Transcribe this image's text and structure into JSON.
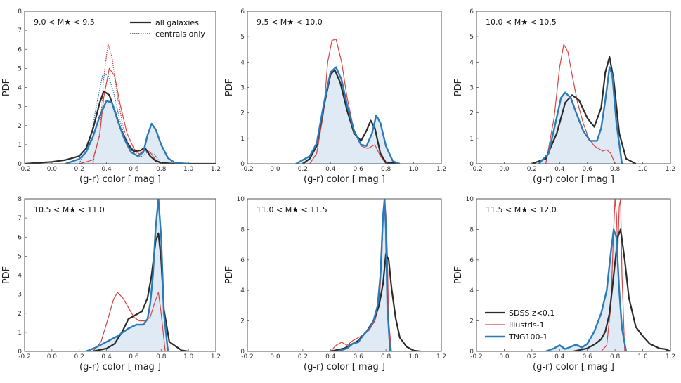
{
  "figure": {
    "ylabel": "PDF",
    "xlabel": "(g-r) color [ mag ]",
    "xticks": [
      "-0.2",
      "0.0",
      "0.2",
      "0.4",
      "0.6",
      "0.8",
      "1.0",
      "1.2"
    ],
    "legend_line_style": {
      "title": "",
      "entries": [
        "all galaxies",
        "centrals only"
      ]
    },
    "legend_sims": {
      "entries": [
        "SDSS z<0.1",
        "Illustris-1",
        "TNG100-1"
      ]
    }
  },
  "colors": {
    "sdss": "#2b2b2b",
    "illustris": "#d94545",
    "tng": "#2b7bb9",
    "fill": "#dfeaf5"
  },
  "chart_data": [
    {
      "type": "line",
      "title": "9.0 < M★ < 9.5",
      "xlabel": "(g-r) color [ mag ]",
      "ylabel": "PDF",
      "xlim": [
        -0.2,
        1.2
      ],
      "ylim": [
        0,
        8
      ],
      "yticks": [
        "0",
        "1",
        "2",
        "3",
        "4",
        "5",
        "6",
        "7",
        "8"
      ],
      "series": [
        {
          "name": "SDSS z<0.1",
          "x": [
            -0.2,
            -0.1,
            0.0,
            0.1,
            0.2,
            0.25,
            0.3,
            0.35,
            0.38,
            0.42,
            0.46,
            0.5,
            0.55,
            0.6,
            0.65,
            0.68,
            0.72,
            0.76,
            0.8,
            0.9,
            1.0,
            1.2
          ],
          "values": [
            0,
            0.05,
            0.1,
            0.2,
            0.4,
            0.8,
            1.8,
            3.2,
            3.8,
            3.6,
            2.8,
            1.9,
            1.1,
            0.65,
            0.7,
            0.85,
            0.4,
            0.15,
            0.05,
            0,
            0,
            0
          ]
        },
        {
          "name": "Illustris-1",
          "x": [
            0.2,
            0.3,
            0.35,
            0.38,
            0.42,
            0.46,
            0.5,
            0.55,
            0.6,
            0.64,
            0.68,
            0.72,
            0.76,
            0.8,
            0.9
          ],
          "values": [
            0,
            0.2,
            1.5,
            3.5,
            5.0,
            4.6,
            3.1,
            1.6,
            0.8,
            0.5,
            0.75,
            0.6,
            0.2,
            0.05,
            0
          ]
        },
        {
          "name": "TNG100-1",
          "x": [
            0.1,
            0.2,
            0.25,
            0.3,
            0.35,
            0.4,
            0.44,
            0.48,
            0.53,
            0.58,
            0.63,
            0.67,
            0.7,
            0.73,
            0.76,
            0.8,
            0.85,
            0.9,
            1.0
          ],
          "values": [
            0,
            0.25,
            0.6,
            1.4,
            2.5,
            3.3,
            3.2,
            2.3,
            1.3,
            0.6,
            0.4,
            0.6,
            1.5,
            2.1,
            1.8,
            1.0,
            0.3,
            0.05,
            0
          ]
        },
        {
          "name": "Illustris-1 centrals only",
          "x": [
            0.3,
            0.35,
            0.38,
            0.41,
            0.44,
            0.48,
            0.52,
            0.56,
            0.6,
            0.64,
            0.68,
            0.72,
            0.8
          ],
          "values": [
            0,
            1.6,
            4.5,
            6.3,
            5.6,
            3.5,
            2.0,
            1.0,
            0.6,
            0.5,
            0.7,
            0.4,
            0
          ]
        },
        {
          "name": "TNG100-1 centrals only",
          "x": [
            0.2,
            0.28,
            0.33,
            0.37,
            0.41,
            0.45,
            0.5,
            0.55,
            0.6,
            0.65,
            0.7,
            0.75,
            0.8
          ],
          "values": [
            0,
            1.2,
            3.2,
            4.6,
            4.7,
            3.8,
            2.2,
            1.1,
            0.5,
            0.35,
            0.6,
            0.5,
            0
          ]
        }
      ]
    },
    {
      "type": "line",
      "title": "9.5 < M★ < 10.0",
      "xlabel": "(g-r) color [ mag ]",
      "ylabel": "PDF",
      "xlim": [
        -0.2,
        1.2
      ],
      "ylim": [
        0,
        6
      ],
      "yticks": [
        "0",
        "1",
        "2",
        "3",
        "4",
        "5",
        "6"
      ],
      "series": [
        {
          "name": "SDSS z<0.1",
          "x": [
            0.2,
            0.25,
            0.3,
            0.35,
            0.4,
            0.43,
            0.47,
            0.52,
            0.57,
            0.62,
            0.66,
            0.69,
            0.72,
            0.76,
            0.8,
            0.9
          ],
          "values": [
            0,
            0.2,
            0.7,
            2.2,
            3.5,
            3.7,
            3.2,
            2.1,
            1.2,
            0.9,
            1.3,
            1.7,
            1.4,
            0.4,
            0.05,
            0
          ]
        },
        {
          "name": "Illustris-1",
          "x": [
            0.25,
            0.3,
            0.35,
            0.38,
            0.41,
            0.44,
            0.48,
            0.52,
            0.57,
            0.62,
            0.67,
            0.72,
            0.76,
            0.8
          ],
          "values": [
            0,
            0.4,
            2.0,
            4.0,
            4.85,
            4.9,
            4.0,
            2.6,
            1.3,
            0.7,
            0.6,
            0.75,
            0.3,
            0
          ]
        },
        {
          "name": "TNG100-1",
          "x": [
            0.15,
            0.25,
            0.3,
            0.35,
            0.4,
            0.44,
            0.48,
            0.52,
            0.57,
            0.62,
            0.66,
            0.7,
            0.73,
            0.76,
            0.8,
            0.85,
            0.9
          ],
          "values": [
            0,
            0.3,
            0.8,
            2.3,
            3.6,
            3.8,
            3.3,
            2.3,
            1.3,
            0.75,
            0.7,
            1.2,
            1.9,
            1.6,
            0.7,
            0.1,
            0
          ]
        }
      ]
    },
    {
      "type": "line",
      "title": "10.0 < M★ < 10.5",
      "xlabel": "(g-r) color [ mag ]",
      "ylabel": "PDF",
      "xlim": [
        -0.2,
        1.2
      ],
      "ylim": [
        0,
        6
      ],
      "yticks": [
        "0",
        "1",
        "2",
        "3",
        "4",
        "5",
        "6"
      ],
      "series": [
        {
          "name": "SDSS z<0.1",
          "x": [
            0.2,
            0.3,
            0.38,
            0.44,
            0.49,
            0.54,
            0.6,
            0.65,
            0.7,
            0.73,
            0.76,
            0.79,
            0.83,
            0.88,
            0.95
          ],
          "values": [
            0,
            0.2,
            1.2,
            2.4,
            2.7,
            2.5,
            1.8,
            1.45,
            2.2,
            3.6,
            4.2,
            3.3,
            1.2,
            0.2,
            0
          ]
        },
        {
          "name": "Illustris-1",
          "x": [
            0.3,
            0.36,
            0.4,
            0.43,
            0.46,
            0.49,
            0.53,
            0.57,
            0.61,
            0.65,
            0.68,
            0.71,
            0.74,
            0.77,
            0.8
          ],
          "values": [
            0,
            1.8,
            3.8,
            4.7,
            4.4,
            3.5,
            2.4,
            1.6,
            1.0,
            0.7,
            0.6,
            0.5,
            0.55,
            0.4,
            0
          ]
        },
        {
          "name": "TNG100-1",
          "x": [
            0.25,
            0.32,
            0.37,
            0.41,
            0.44,
            0.48,
            0.52,
            0.57,
            0.62,
            0.67,
            0.7,
            0.73,
            0.76,
            0.78,
            0.81,
            0.85
          ],
          "values": [
            0,
            0.4,
            1.6,
            2.6,
            2.8,
            2.6,
            2.0,
            1.3,
            0.9,
            0.9,
            1.4,
            2.5,
            3.8,
            3.5,
            1.6,
            0
          ]
        }
      ]
    },
    {
      "type": "line",
      "title": "10.5 < M★ < 11.0",
      "xlabel": "(g-r) color [ mag ]",
      "ylabel": "PDF",
      "xlim": [
        -0.2,
        1.2
      ],
      "ylim": [
        0,
        8
      ],
      "yticks": [
        "0",
        "1",
        "2",
        "3",
        "4",
        "5",
        "6",
        "7",
        "8"
      ],
      "series": [
        {
          "name": "SDSS z<0.1",
          "x": [
            0.3,
            0.4,
            0.46,
            0.52,
            0.56,
            0.61,
            0.66,
            0.7,
            0.73,
            0.76,
            0.78,
            0.8,
            0.82,
            0.86,
            0.95,
            1.0
          ],
          "values": [
            0,
            0.15,
            0.4,
            1.1,
            1.7,
            1.9,
            2.1,
            2.8,
            4.0,
            5.8,
            6.2,
            4.8,
            2.2,
            0.5,
            0.05,
            0
          ]
        },
        {
          "name": "Illustris-1",
          "x": [
            0.3,
            0.36,
            0.41,
            0.45,
            0.48,
            0.52,
            0.56,
            0.6,
            0.64,
            0.68,
            0.72,
            0.75,
            0.78,
            0.8,
            0.83
          ],
          "values": [
            0,
            0.5,
            1.7,
            2.7,
            3.1,
            2.8,
            2.3,
            1.8,
            1.6,
            1.6,
            1.8,
            2.5,
            3.1,
            2.0,
            0
          ]
        },
        {
          "name": "TNG100-1",
          "x": [
            0.25,
            0.32,
            0.4,
            0.48,
            0.56,
            0.62,
            0.67,
            0.7,
            0.72,
            0.74,
            0.76,
            0.78,
            0.8,
            0.82,
            0.85
          ],
          "values": [
            0,
            0.2,
            0.5,
            0.8,
            1.2,
            1.4,
            1.4,
            1.7,
            2.5,
            4.0,
            6.5,
            8.0,
            6.0,
            2.0,
            0
          ]
        }
      ]
    },
    {
      "type": "line",
      "title": "11.0 < M★ < 11.5",
      "xlabel": "(g-r) color [ mag ]",
      "ylabel": "PDF",
      "xlim": [
        -0.2,
        1.2
      ],
      "ylim": [
        0,
        10
      ],
      "yticks": [
        "0",
        "2",
        "4",
        "6",
        "8",
        "10"
      ],
      "series": [
        {
          "name": "SDSS z<0.1",
          "x": [
            0.4,
            0.5,
            0.6,
            0.66,
            0.71,
            0.75,
            0.78,
            0.8,
            0.82,
            0.84,
            0.87,
            0.9,
            0.95,
            1.0,
            1.05
          ],
          "values": [
            0,
            0.2,
            0.7,
            1.3,
            2.0,
            3.0,
            4.5,
            6.4,
            6.0,
            4.2,
            2.2,
            0.9,
            0.3,
            0.05,
            0
          ]
        },
        {
          "name": "Illustris-1",
          "x": [
            0.4,
            0.44,
            0.48,
            0.52,
            0.56,
            0.6,
            0.64,
            0.68,
            0.72,
            0.75,
            0.77,
            0.78,
            0.79,
            0.8,
            0.81,
            0.82,
            0.84
          ],
          "values": [
            0,
            0.4,
            0.6,
            0.4,
            0.7,
            0.9,
            1.1,
            1.4,
            2.0,
            3.0,
            6.0,
            9.0,
            10.0,
            9.0,
            6.5,
            2.0,
            0
          ]
        },
        {
          "name": "TNG100-1",
          "x": [
            0.45,
            0.52,
            0.56,
            0.6,
            0.64,
            0.68,
            0.71,
            0.74,
            0.76,
            0.78,
            0.79,
            0.8,
            0.81,
            0.83
          ],
          "values": [
            0,
            0.2,
            0.5,
            0.6,
            1.1,
            1.5,
            2.0,
            3.0,
            5.0,
            9.0,
            10.0,
            8.0,
            3.0,
            0
          ]
        }
      ]
    },
    {
      "type": "line",
      "title": "11.5 < M★ < 12.0",
      "xlabel": "(g-r) color [ mag ]",
      "ylabel": "PDF",
      "xlim": [
        -0.2,
        1.2
      ],
      "ylim": [
        0,
        10
      ],
      "yticks": [
        "0",
        "2",
        "4",
        "6",
        "8",
        "10"
      ],
      "series": [
        {
          "name": "SDSS z<0.1",
          "x": [
            0.5,
            0.6,
            0.66,
            0.7,
            0.73,
            0.76,
            0.79,
            0.82,
            0.84,
            0.87,
            0.9,
            0.95,
            1.0,
            1.05,
            1.12,
            1.16,
            1.2
          ],
          "values": [
            0,
            0.2,
            0.5,
            0.8,
            1.3,
            2.5,
            5.0,
            7.5,
            8.0,
            6.0,
            3.5,
            1.6,
            1.0,
            0.5,
            0.2,
            0.15,
            0
          ]
        },
        {
          "name": "Illustris-1",
          "x": [
            0.7,
            0.74,
            0.77,
            0.79,
            0.8,
            0.81,
            0.82,
            0.83,
            0.84,
            0.85,
            0.87
          ],
          "values": [
            0,
            0.4,
            3.0,
            8.0,
            10.0,
            9.0,
            6.5,
            9.5,
            10.0,
            5.0,
            0
          ]
        },
        {
          "name": "TNG100-1",
          "x": [
            0.3,
            0.36,
            0.4,
            0.44,
            0.48,
            0.52,
            0.56,
            0.6,
            0.65,
            0.7,
            0.74,
            0.77,
            0.79,
            0.81,
            0.83,
            0.85,
            0.88
          ],
          "values": [
            0,
            0.2,
            0.4,
            0.15,
            0.3,
            0.45,
            0.25,
            0.5,
            1.3,
            2.5,
            4.0,
            6.5,
            8.0,
            7.5,
            4.0,
            1.5,
            0
          ]
        }
      ]
    }
  ]
}
